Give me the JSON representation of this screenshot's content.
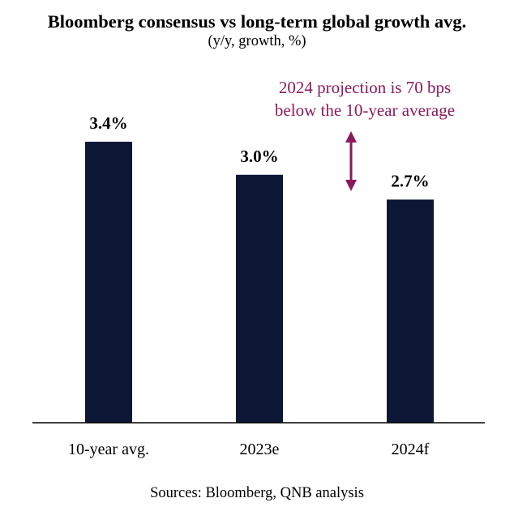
{
  "chart_data": {
    "type": "bar",
    "title": "Bloomberg consensus vs long-term global growth avg.",
    "subtitle": "(y/y, growth, %)",
    "categories": [
      "10-year avg.",
      "2023e",
      "2024f"
    ],
    "values": [
      3.4,
      3.0,
      2.7
    ],
    "value_labels": [
      "3.4%",
      "3.0%",
      "2.7%"
    ],
    "ylim": [
      0,
      3.4
    ],
    "grid": false,
    "legend": "none",
    "annotation": {
      "lines": [
        "2024 projection is 70 bps",
        "below the 10-year average"
      ]
    },
    "source": "Sources: Bloomberg, QNB analysis"
  },
  "colors": {
    "bar": "#0c1736",
    "annotation": "#8b1a5c",
    "text": "#000000",
    "axis": "#000000"
  }
}
